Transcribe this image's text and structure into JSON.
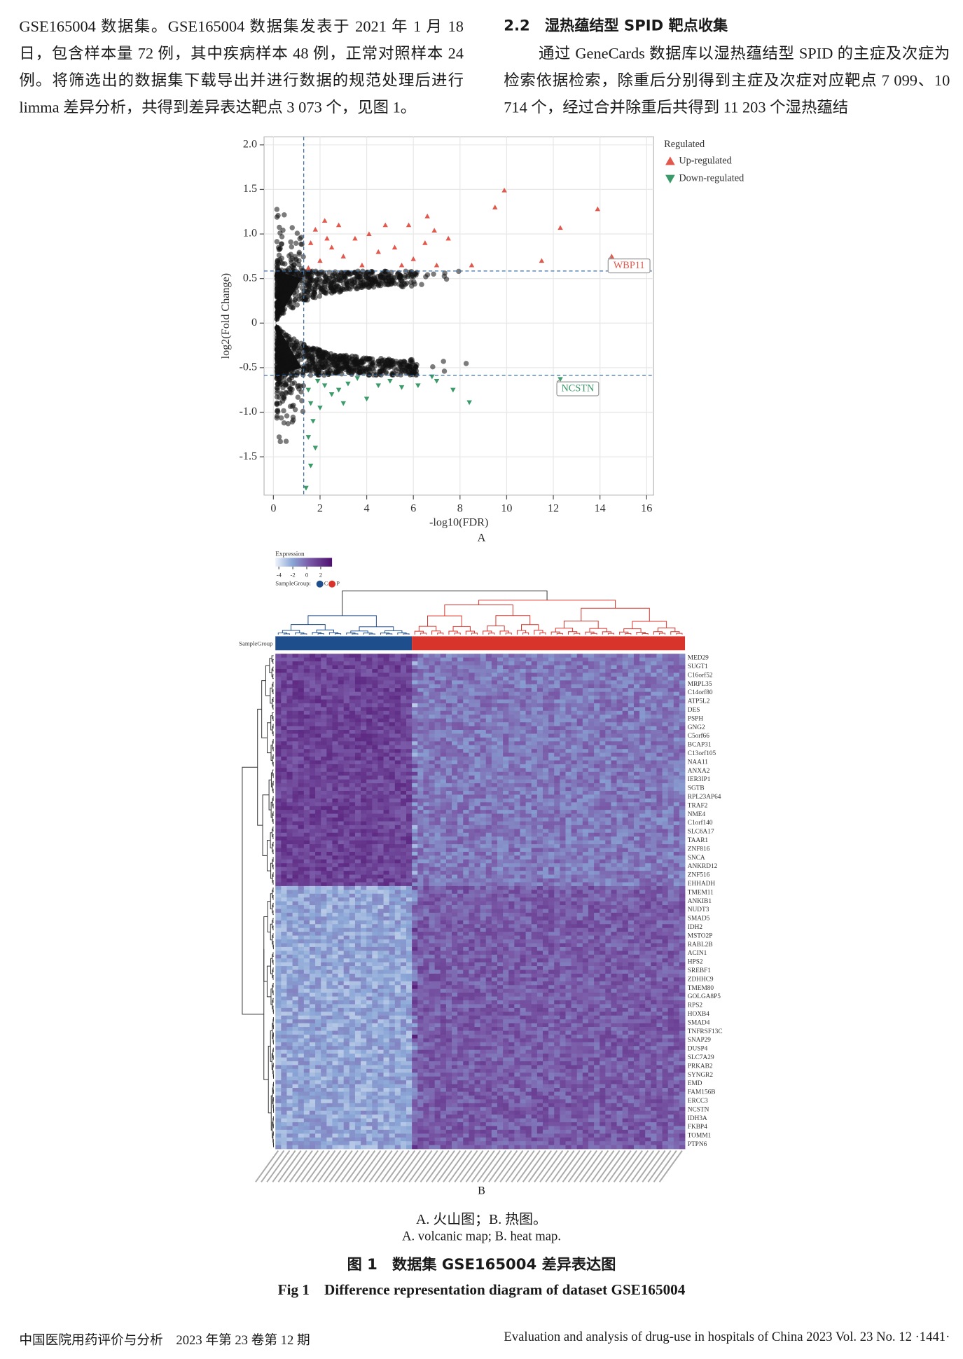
{
  "body": {
    "left_paragraph": "GSE165004 数据集。GSE165004 数据集发表于 2021 年 1 月 18 日，包含样本量 72 例，其中疾病样本 48 例，正常对照样本 24 例。将筛选出的数据集下载导出并进行数据的规范处理后进行 limma 差异分析，共得到差异表达靶点 3 073 个，见图 1。",
    "right_heading": "2.2　湿热蕴结型 SPID 靶点收集",
    "right_paragraph": "通过 GeneCards 数据库以湿热蕴结型 SPID 的主症及次症为检索依据检索，除重后分别得到主症及次症对应靶点 7 099、10 714 个，经过合并除重后共得到 11 203 个湿热蕴结"
  },
  "figure": {
    "panel_a": {
      "label": "A",
      "chart_data": {
        "type": "scatter",
        "xlabel": "-log10(FDR)",
        "ylabel": "log2(Fold Change)",
        "xlim": [
          -0.4,
          16.3
        ],
        "ylim": [
          -1.93,
          2.09
        ],
        "xticks": [
          0,
          2,
          4,
          6,
          8,
          10,
          12,
          14,
          16
        ],
        "yticks": [
          {
            "value": 2,
            "label": "2.0"
          },
          {
            "value": 1.5,
            "label": "1.5"
          },
          {
            "value": 1,
            "label": "1.0"
          },
          {
            "value": 0.5,
            "label": "0.5"
          },
          0,
          {
            "value": -0.5,
            "label": "-0.5"
          },
          {
            "value": -1,
            "label": "-1.0"
          },
          {
            "value": -1.5,
            "label": "-1.5"
          }
        ],
        "grid": true,
        "threshold_lines": {
          "x": [
            1.3
          ],
          "y": [
            0.585,
            -0.585
          ]
        },
        "legend_title": "Regulated",
        "legend": "outside-upper-right",
        "series": [
          {
            "name": "Up-regulated",
            "color": "#e0594c",
            "marker": "triangle-up",
            "x": [
              9.9,
              13.9,
              12.3,
              11.5,
              14.5,
              9.5,
              6.6,
              6.9,
              5.8,
              4.8,
              4.1,
              2.2,
              2.8,
              3.5,
              2.5,
              3.0,
              4.5,
              5.2,
              6.0,
              7.5,
              7.0,
              2.0,
              1.6,
              1.8,
              3.8,
              5.5,
              6.5,
              8.5,
              1.5,
              2.3
            ],
            "y": [
              1.49,
              1.28,
              1.07,
              0.7,
              0.75,
              1.3,
              1.2,
              1.04,
              1.1,
              1.1,
              1.0,
              1.15,
              1.1,
              0.95,
              0.85,
              0.75,
              0.8,
              0.85,
              0.72,
              0.95,
              0.65,
              0.7,
              0.9,
              1.05,
              0.65,
              0.65,
              0.9,
              0.65,
              0.62,
              0.95
            ]
          },
          {
            "name": "Down-regulated",
            "color": "#3a9a68",
            "marker": "triangle-down",
            "x": [
              12.3,
              8.4,
              7.7,
              6.2,
              5.5,
              4.5,
              3.6,
              3.2,
              2.5,
              2.0,
              1.7,
              1.5,
              1.8,
              1.6,
              1.4,
              2.2,
              2.8,
              1.9,
              1.5,
              4.0,
              5.0,
              3.0,
              1.6,
              7.0,
              6.8
            ],
            "y": [
              -0.63,
              -0.89,
              -0.75,
              -0.7,
              -0.72,
              -0.7,
              -0.62,
              -0.68,
              -0.8,
              -0.95,
              -1.1,
              -1.28,
              -1.4,
              -1.6,
              -1.85,
              -0.7,
              -0.75,
              -0.65,
              -0.75,
              -0.85,
              -0.65,
              -0.9,
              -0.9,
              -0.65,
              -0.6
            ]
          }
        ],
        "annotations": [
          {
            "text": "WBP11",
            "x": 14.5,
            "y": 0.75,
            "color": "#e0594c"
          },
          {
            "text": "NCSTN",
            "x": 12.3,
            "y": -0.63,
            "color": "#3a9a68"
          }
        ]
      }
    },
    "panel_b": {
      "label": "B",
      "legend_title": "Expression",
      "legend_ticks": [
        -4,
        -2,
        0,
        2
      ],
      "group_legend_title": "SampleGroup:",
      "groups": [
        {
          "name": "C",
          "color": "#1f4e8c"
        },
        {
          "name": "P",
          "color": "#d9342b"
        }
      ],
      "row_label": "SampleGroup",
      "genes": [
        "MED29",
        "SUGT1",
        "C16orf52",
        "MRPL35",
        "C14orf80",
        "ATP5L2",
        "DES",
        "PSPH",
        "GNG2",
        "C5orf66",
        "BCAP31",
        "C13orf105",
        "NAA11",
        "ANXA2",
        "IER3IP1",
        "SGTB",
        "RPL23AP64",
        "TRAF2",
        "NME4",
        "C1orf140",
        "SLC6A17",
        "TAAR1",
        "ZNF816",
        "SNCA",
        "ANKRD12",
        "ZNF516",
        "EHHADH",
        "TMEM11",
        "ANKIB1",
        "NUDT3",
        "SMAD5",
        "IDH2",
        "MSTO2P",
        "RABL2B",
        "ACIN1",
        "HPS2",
        "SREBF1",
        "ZDHHC9",
        "TMEM80",
        "GOLGA8P5",
        "RPS2",
        "HOXB4",
        "SMAD4",
        "TNFRSF13C",
        "SNAP29",
        "DUSP4",
        "SLC7A29",
        "PRKAB2",
        "SYNGR2",
        "EMD",
        "FAM156B",
        "ERCC3",
        "NCSTN",
        "IDH3A",
        "FKBP4",
        "TOMM1",
        "PTPN6"
      ]
    },
    "note_zh": "A. 火山图；B. 热图。",
    "note_en": "A. volcanic map; B. heat map.",
    "title_zh": "图 1　数据集 GSE165004 差异表达图",
    "title_en": "Fig 1　Difference representation diagram of dataset GSE165004"
  },
  "footer": {
    "left": "中国医院用药评价与分析　2023 年第 23 卷第 12 期",
    "right": "Evaluation and analysis of drug-use in hospitals of China 2023 Vol. 23 No. 12 ·1441·"
  }
}
